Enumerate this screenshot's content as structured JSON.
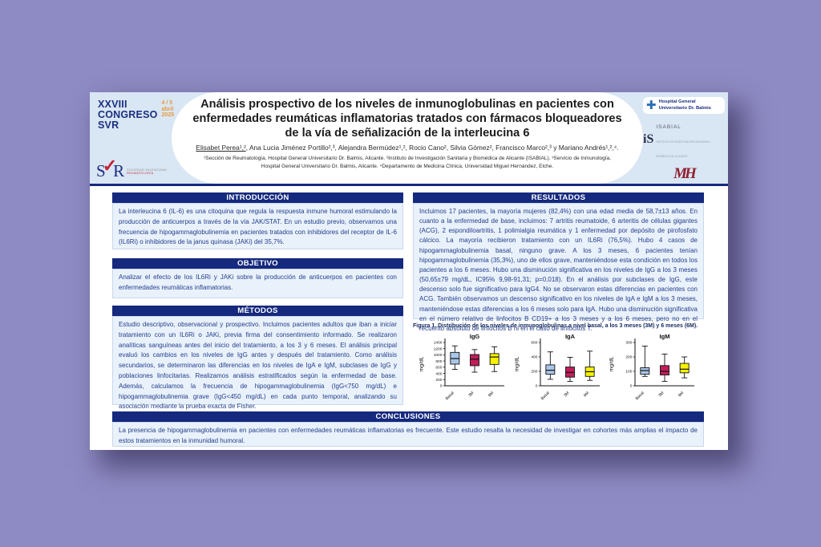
{
  "colors": {
    "background_purple": "#8e8ac3",
    "header_blue": "#d9e6f3",
    "navy": "#15297e",
    "body_text_blue": "#233e8b",
    "box_bg": "#e9f1fb",
    "congress_orange": "#e89b3c",
    "svr_red": "#c42033"
  },
  "congress": {
    "name": "XXVIII CONGRESO SVR",
    "date": "4 / 5 abril 2025",
    "svr_letters_left": "S",
    "svr_letters_right": "R",
    "svr_check_icon": "✓",
    "society_line1": "SOCIEDAD VALENCIANA",
    "society_line2": "REUMATOLOGÍA"
  },
  "logos": {
    "hospital_cross_icon": "✚",
    "hospital_name": "Hospital General Universitario Dr. Balmis",
    "isabial_mark": "iS",
    "isabial_name": "ISABIAL",
    "isabial_subtext": "INSTITUTO DE INVESTIGACIÓN SANITARIA Y BIOMÉDICA DE ALICANTE",
    "umh_mark": "MH"
  },
  "header": {
    "title": "Análisis prospectivo de los niveles de inmunoglobulinas en pacientes con enfermedades reumáticas inflamatorias tratados con fármacos bloqueadores de la vía de señalización de la interleucina 6",
    "first_author": "Elisabet Perea¹,²",
    "other_authors": ", Ana Lucia Jiménez Portillo²,³, Alejandra Bermúdez¹,², Rocio Cano², Silvia Gómez², Francisco Marco²,³ y Mariano Andrés¹,²,⁴.",
    "affiliations": "¹Sección de Reumatología, Hospital General Universitario Dr. Balmis, Alicante. ²Instituto de Investigación Sanitaria y Biomédica de Alicante (ISABIAL). ³Servicio de Inmunología, Hospital General Universitario Dr. Balmis, Alicante. ⁴Departamento de Medicina Clínica, Universidad Miguel Hernández, Elche."
  },
  "sections": {
    "introduccion": {
      "title": "INTRODUCCIÓN",
      "body": "La interleucina 6 (IL-6) es una citoquina que regula la respuesta inmune humoral estimulando la producción de anticuerpos a través de la vía JAK/STAT. En un estudio previo, observamos una frecuencia de hipogammaglobulinemia en pacientes tratados con inhibidores del receptor de IL-6 (IL6Ri) o inhibidores de la janus quinasa (JAKi) del 35,7%."
    },
    "objetivo": {
      "title": "OBJETIVO",
      "body": "Analizar el efecto de los IL6Ri y JAKi sobre la producción de anticuerpos en pacientes con enfermedades reumáticas inflamatorias."
    },
    "metodos": {
      "title": "MÉTODOS",
      "body": "Estudio descriptivo, observacional y prospectivo. Incluimos pacientes adultos que iban a iniciar tratamiento con un IL6Ri o JAKi, previa firma del consentimiento informado. Se realizaron analíticas sanguíneas antes del inicio del tratamiento, a los 3 y 6 meses. El análisis principal evaluó los cambios en los niveles de IgG antes y después del tratamiento. Como análisis secundarios, se determinaron las diferencias en los niveles de IgA e IgM, subclases de IgG y poblaciones linfocitarias. Realizamos análisis estratificados según la enfermedad de base. Además, calculamos la frecuencia de hipogammaglobulinemia (IgG<750 mg/dL) e hipogammaglobulinemia grave (IgG<450 mg/dL) en cada punto temporal, analizando su asociación mediante la prueba exacta de Fisher."
    },
    "resultados": {
      "title": "RESULTADOS",
      "body": "Incluimos 17 pacientes, la mayoría mujeres (82,4%) con una edad media de 58,7±13 años. En cuanto a la enfermedad de base, incluimos: 7 artritis reumatoide, 6 arteritis de células gigantes (ACG), 2 espondiloartritis, 1 polimialgia reumática y 1 enfermedad por depósito de pirofosfato cálcico. La mayoría recibieron tratamiento con un IL6Ri (76,5%). Hubo 4 casos de hipogammaglobulinemia basal, ninguno grave. A los 3 meses, 6 pacientes tenían hipogammaglobulinemia (35,3%), uno de ellos grave, manteniéndose esta condición en todos los pacientes a los 6 meses. Hubo una disminución significativa en los niveles de IgG a los 3 meses (50,65±79 mg/dL, IC95% 9,98-91,31; p=0,018). En el análisis por subclases de IgG, este descenso solo fue significativo para IgG4. No se observaron estas diferencias en pacientes con ACG. También observamos un descenso significativo en los niveles de IgA e IgM a los 3 meses, manteniéndose estas diferencias a los 6 meses solo para IgA. Hubo una disminución significativa en el número relativo de linfocitos B CD19+ a los 3 meses y a los 6 meses, pero no en el recuento absoluto de linfocitos B ni en el caso de linfocitos T.",
      "figure_caption": "Figura 1. Distribución de los niveles de inmunoglobulinas a nivel basal, a los 3 meses (3M) y 6 meses (6M)."
    },
    "conclusiones": {
      "title": "CONCLUSIONES",
      "body": "La presencia de hipogammaglobulinemia en pacientes con enfermedades reumáticas inflamatorias es frecuente. Este estudio resalta la necesidad de investigar en cohortes más amplias el impacto de estos tratamientos en la inmunidad humoral."
    }
  },
  "chart_data": [
    {
      "type": "boxplot",
      "title": "IgG",
      "ylabel": "mg/dL",
      "ylim": [
        0,
        1400
      ],
      "yticks": [
        0,
        200,
        400,
        600,
        800,
        1000,
        1200,
        1400
      ],
      "categories": [
        "Basal",
        "3M",
        "6M"
      ],
      "series": [
        {
          "name": "Basal",
          "color": "#a9c6e9",
          "low": 530,
          "q1": 700,
          "median": 880,
          "q3": 1080,
          "high": 1290
        },
        {
          "name": "3M",
          "color": "#c01e5a",
          "low": 440,
          "q1": 650,
          "median": 860,
          "q3": 1010,
          "high": 1170
        },
        {
          "name": "6M",
          "color": "#f7f200",
          "low": 460,
          "q1": 690,
          "median": 930,
          "q3": 1040,
          "high": 1260
        }
      ]
    },
    {
      "type": "boxplot",
      "title": "IgA",
      "ylabel": "mg/dL",
      "ylim": [
        0,
        600
      ],
      "yticks": [
        0,
        200,
        400,
        600
      ],
      "categories": [
        "Basal",
        "3M",
        "6M"
      ],
      "series": [
        {
          "name": "Basal",
          "color": "#a9c6e9",
          "low": 90,
          "q1": 160,
          "median": 215,
          "q3": 290,
          "high": 470
        },
        {
          "name": "3M",
          "color": "#c01e5a",
          "low": 60,
          "q1": 120,
          "median": 185,
          "q3": 260,
          "high": 395
        },
        {
          "name": "6M",
          "color": "#f7f200",
          "low": 75,
          "q1": 130,
          "median": 195,
          "q3": 260,
          "high": 480
        }
      ]
    },
    {
      "type": "boxplot",
      "title": "IgM",
      "ylabel": "mg/dL",
      "ylim": [
        0,
        300
      ],
      "yticks": [
        0,
        100,
        200,
        300
      ],
      "categories": [
        "Basal",
        "3M",
        "6M"
      ],
      "series": [
        {
          "name": "Basal",
          "color": "#a9c6e9",
          "low": 65,
          "q1": 80,
          "median": 105,
          "q3": 125,
          "high": 275
        },
        {
          "name": "3M",
          "color": "#c01e5a",
          "low": 30,
          "q1": 75,
          "median": 100,
          "q3": 140,
          "high": 220
        },
        {
          "name": "6M",
          "color": "#f7f200",
          "low": 55,
          "q1": 90,
          "median": 115,
          "q3": 155,
          "high": 200
        }
      ]
    }
  ]
}
